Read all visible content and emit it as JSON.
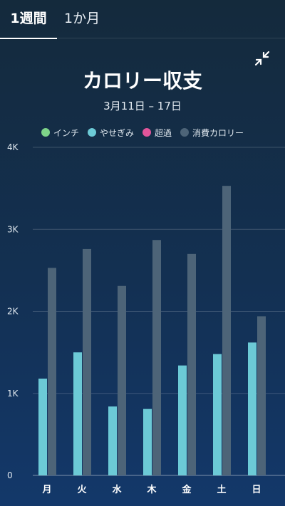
{
  "tabs": [
    {
      "label": "1週間",
      "active": true
    },
    {
      "label": "1か月",
      "active": false
    }
  ],
  "collapse_icon": "collapse-arrows-icon",
  "chart_data": {
    "type": "bar",
    "title": "カロリー収支",
    "subtitle": "3月11日 – 17日",
    "categories": [
      "月",
      "火",
      "水",
      "木",
      "金",
      "土",
      "日"
    ],
    "series": [
      {
        "name": "インチ",
        "color": "#7ed489",
        "values": [
          0,
          0,
          0,
          0,
          0,
          0,
          0
        ]
      },
      {
        "name": "やせぎみ",
        "color": "#6ccad6",
        "values": [
          1180,
          1500,
          840,
          810,
          1340,
          1480,
          1620
        ]
      },
      {
        "name": "超過",
        "color": "#e2559a",
        "values": [
          0,
          0,
          0,
          0,
          0,
          0,
          0
        ]
      },
      {
        "name": "消費カロリー",
        "color": "#4d6478",
        "values": [
          2530,
          2760,
          2310,
          2870,
          2700,
          3530,
          1940
        ]
      }
    ],
    "y_ticks": [
      "0",
      "1K",
      "2K",
      "3K",
      "4K"
    ],
    "ylim": [
      0,
      4000
    ],
    "grid": true,
    "legend_position": "top"
  }
}
